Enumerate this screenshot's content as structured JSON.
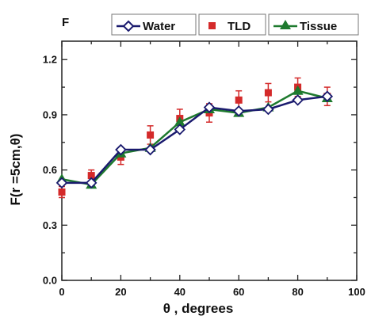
{
  "chart_data": {
    "type": "line",
    "panel_label": "F",
    "title": "",
    "xlabel": "θ , degrees",
    "ylabel": "F(r =5cm,θ)",
    "xlim": [
      0,
      100
    ],
    "ylim": [
      0.0,
      1.3
    ],
    "x_ticks": [
      "0",
      "20",
      "40",
      "60",
      "80",
      "100"
    ],
    "y_ticks": [
      "0.0",
      "0.3",
      "0.6",
      "0.9",
      "1.2"
    ],
    "grid": false,
    "legend_position": "top",
    "series": [
      {
        "name": "Water",
        "color": "#1a1a6e",
        "marker": "open-diamond",
        "line": true,
        "x": [
          0,
          10,
          20,
          30,
          40,
          50,
          60,
          70,
          80,
          90
        ],
        "y": [
          0.53,
          0.53,
          0.71,
          0.71,
          0.82,
          0.94,
          0.92,
          0.93,
          0.98,
          1.0
        ]
      },
      {
        "name": "TLD",
        "color": "#d42a2a",
        "marker": "square",
        "line": false,
        "x": [
          0,
          10,
          20,
          30,
          40,
          50,
          60,
          70,
          80,
          90
        ],
        "y": [
          0.48,
          0.57,
          0.67,
          0.79,
          0.88,
          0.91,
          0.98,
          1.02,
          1.05,
          1.0
        ],
        "err": [
          0.03,
          0.03,
          0.04,
          0.05,
          0.05,
          0.05,
          0.05,
          0.05,
          0.05,
          0.05
        ]
      },
      {
        "name": "Tissue",
        "color": "#1e7a2e",
        "marker": "triangle",
        "line": true,
        "x": [
          0,
          10,
          20,
          30,
          40,
          50,
          60,
          70,
          80,
          90
        ],
        "y": [
          0.55,
          0.52,
          0.69,
          0.72,
          0.86,
          0.93,
          0.91,
          0.94,
          1.03,
          0.99
        ]
      }
    ]
  }
}
